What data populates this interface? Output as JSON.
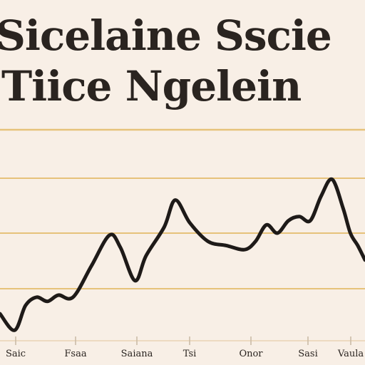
{
  "header": {
    "title_line_1": "Sicelaine Sscie",
    "title_line_2": "Tiice Ngelein"
  },
  "colors": {
    "background": "#f8efe6",
    "gridline": "#e6c27a",
    "line": "#1e1a18",
    "text": "#2a2420"
  },
  "chart_data": {
    "type": "line",
    "title": "Sicelaine Sscie Tiice Ngelein",
    "xlabel": "",
    "ylabel": "",
    "grid": true,
    "legend": "none",
    "ylim": [
      0,
      10
    ],
    "x": [
      0,
      4,
      7,
      10,
      13,
      16,
      20,
      25,
      30,
      33,
      37,
      40,
      45,
      48,
      52,
      57,
      62,
      67,
      70,
      73,
      76,
      79,
      82,
      85,
      88,
      91,
      94,
      96,
      98,
      100
    ],
    "xtick_labels": [
      "Saic",
      "Fsaa",
      "Saiana",
      "Tsi",
      "Onor",
      "Sasi",
      "Vaula"
    ],
    "series": [
      {
        "values": [
          1.1,
          0.3,
          1.5,
          1.9,
          1.7,
          2.0,
          1.9,
          3.4,
          4.9,
          4.3,
          2.7,
          3.9,
          5.3,
          6.6,
          5.5,
          4.6,
          4.4,
          4.2,
          4.6,
          5.4,
          5.0,
          5.6,
          5.8,
          5.6,
          6.8,
          7.6,
          6.2,
          5.0,
          4.4,
          3.7
        ]
      }
    ]
  }
}
